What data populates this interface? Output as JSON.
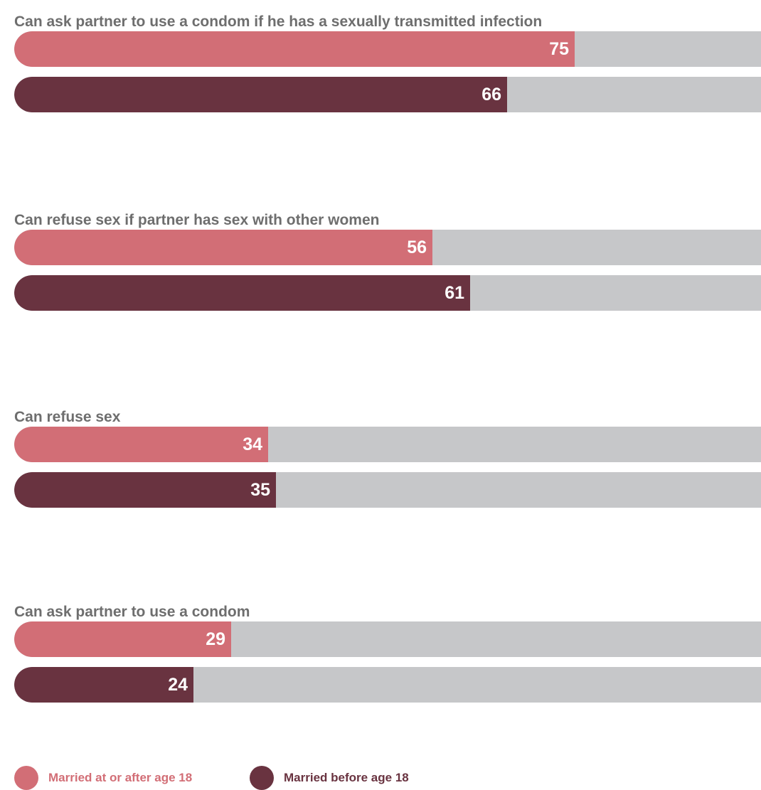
{
  "chart_data": {
    "type": "bar",
    "orientation": "horizontal",
    "xlim": [
      0,
      100
    ],
    "colors": {
      "married_at_or_after_18": "#d26e76",
      "married_before_18": "#693340",
      "track": "#c6c7c9",
      "title": "#6e6e6e"
    },
    "categories": [
      "Can ask partner to use a condom if he has a sexually transmitted infection",
      "Can refuse sex if partner has sex with other women",
      "Can refuse sex",
      "Can ask partner to use a condom"
    ],
    "series": [
      {
        "name": "Married at or after age 18",
        "color": "#d26e76",
        "values": [
          75,
          56,
          34,
          29
        ]
      },
      {
        "name": "Married before age 18",
        "color": "#693340",
        "values": [
          66,
          61,
          35,
          24
        ]
      }
    ],
    "legend_position": "bottom-left"
  }
}
